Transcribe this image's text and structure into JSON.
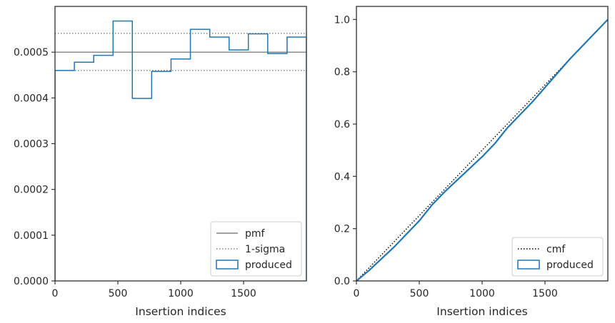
{
  "chart_data": [
    {
      "type": "step",
      "title": "",
      "xlabel": "Insertion indices",
      "ylabel": "",
      "xlim": [
        0,
        2000
      ],
      "ylim": [
        0,
        0.0006
      ],
      "xticks": [
        0,
        500,
        1000,
        1500
      ],
      "xtick_labels": [
        "0",
        "500",
        "1000",
        "1500"
      ],
      "yticks": [
        0,
        0.0001,
        0.0002,
        0.0003,
        0.0004,
        0.0005
      ],
      "ytick_labels": [
        "0.0000",
        "0.0001",
        "0.0002",
        "0.0003",
        "0.0004",
        "0.0005"
      ],
      "grid": false,
      "legend_position": "lower right",
      "legend": [
        "pmf",
        "1-sigma",
        "produced"
      ],
      "lines": [
        {
          "name": "pmf",
          "y": 0.0005,
          "color": "#808080",
          "style": "solid"
        },
        {
          "name": "1-sigma",
          "y": 0.000541,
          "color": "#808080",
          "style": "dotted"
        },
        {
          "name": "1-sigma",
          "y": 0.00046,
          "color": "#808080",
          "style": "dotted"
        }
      ],
      "series": [
        {
          "name": "produced",
          "color": "#1f77b4",
          "bin_edges": [
            0,
            154,
            308,
            462,
            615,
            769,
            923,
            1077,
            1231,
            1385,
            1538,
            1692,
            1846,
            2000
          ],
          "values": [
            0.00046,
            0.000478,
            0.000493,
            0.000568,
            0.000399,
            0.000458,
            0.000485,
            0.00055,
            0.000533,
            0.000505,
            0.00054,
            0.000497,
            0.000533
          ]
        }
      ]
    },
    {
      "type": "line",
      "title": "",
      "xlabel": "Insertion indices",
      "ylabel": "",
      "xlim": [
        0,
        2000
      ],
      "ylim": [
        0,
        1.05
      ],
      "xticks": [
        0,
        500,
        1000,
        1500
      ],
      "xtick_labels": [
        "0",
        "500",
        "1000",
        "1500"
      ],
      "yticks": [
        0,
        0.2,
        0.4,
        0.6,
        0.8,
        1.0
      ],
      "ytick_labels": [
        "0.0",
        "0.2",
        "0.4",
        "0.6",
        "0.8",
        "1.0"
      ],
      "grid": false,
      "legend_position": "lower right",
      "legend": [
        "cmf",
        "produced"
      ],
      "series": [
        {
          "name": "cmf",
          "color": "#000000",
          "style": "dotted",
          "x": [
            0,
            2000
          ],
          "y": [
            0,
            1.0
          ]
        },
        {
          "name": "produced",
          "color": "#1f77b4",
          "style": "solid",
          "x": [
            0,
            100,
            200,
            300,
            400,
            500,
            600,
            700,
            800,
            900,
            1000,
            1100,
            1200,
            1300,
            1400,
            1500,
            1600,
            1700,
            1800,
            1900,
            2000
          ],
          "y": [
            0,
            0.04,
            0.085,
            0.13,
            0.18,
            0.23,
            0.29,
            0.34,
            0.385,
            0.43,
            0.475,
            0.525,
            0.585,
            0.635,
            0.685,
            0.74,
            0.795,
            0.85,
            0.9,
            0.95,
            1.0
          ]
        }
      ]
    }
  ]
}
